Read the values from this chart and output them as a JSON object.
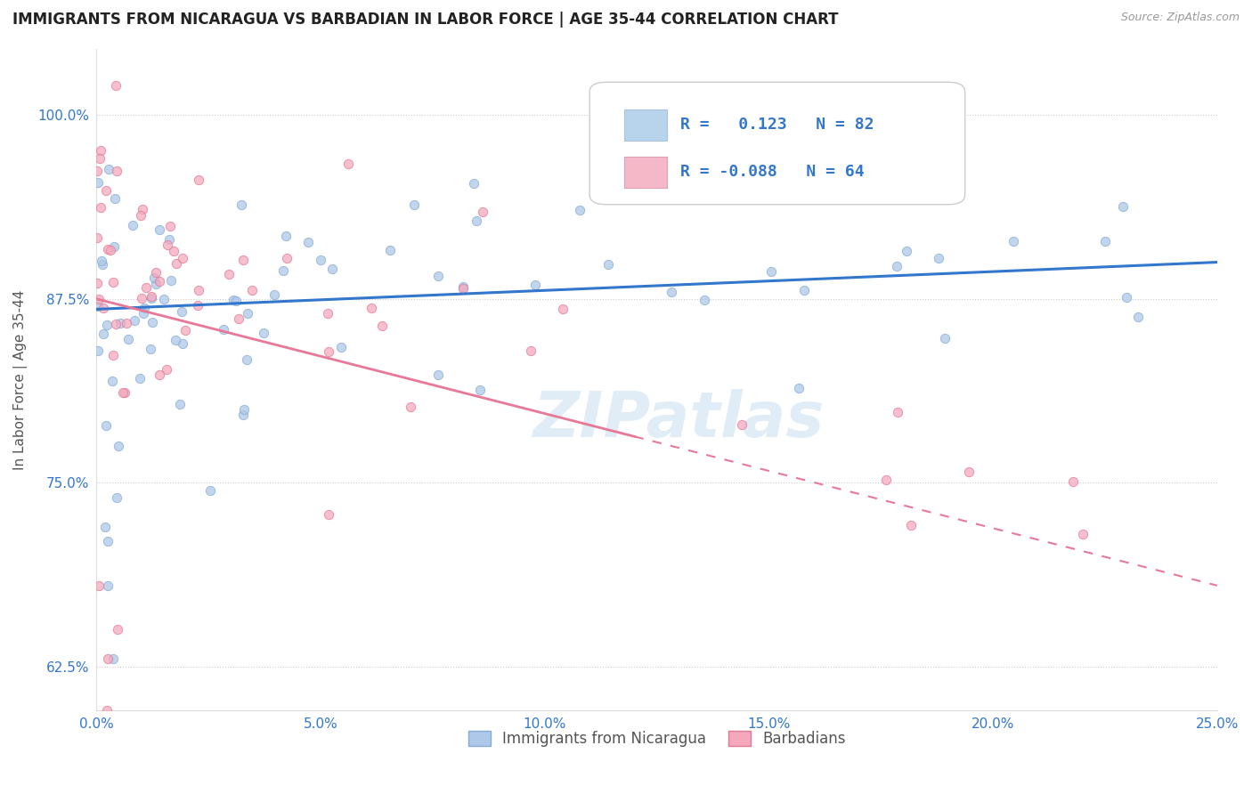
{
  "title": "IMMIGRANTS FROM NICARAGUA VS BARBADIAN IN LABOR FORCE | AGE 35-44 CORRELATION CHART",
  "source": "Source: ZipAtlas.com",
  "xlabel_ticks": [
    "0.0%",
    "5.0%",
    "10.0%",
    "15.0%",
    "20.0%",
    "25.0%"
  ],
  "ylabel_ticks": [
    "62.5%",
    "75.0%",
    "87.5%",
    "100.0%"
  ],
  "xlim": [
    0.0,
    0.25
  ],
  "ylim": [
    0.595,
    1.045
  ],
  "R_nicaragua": 0.123,
  "N_nicaragua": 82,
  "R_barbadian": -0.088,
  "N_barbadian": 64,
  "dot_color_nicaragua": "#adc8e8",
  "dot_color_barbadian": "#f5a8bc",
  "dot_edge_nicaragua": "#85aad4",
  "dot_edge_barbadian": "#e07898",
  "line_color_nicaragua": "#3377cc",
  "line_color_barbadian": "#e87898",
  "legend_box_nicaragua": "#b8d4ec",
  "legend_box_barbadian": "#f4b8c8",
  "watermark": "ZIPatlas",
  "watermark_color": "#c8dff0",
  "ylabel": "In Labor Force | Age 35-44",
  "background_color": "#ffffff",
  "title_fontsize": 12,
  "legend_R_N_color": "#3377cc",
  "dot_size": 55,
  "dot_alpha": 0.75,
  "nic_trend_y0": 0.868,
  "nic_trend_y1": 0.9,
  "bar_trend_y0": 0.875,
  "bar_trend_y1": 0.68
}
